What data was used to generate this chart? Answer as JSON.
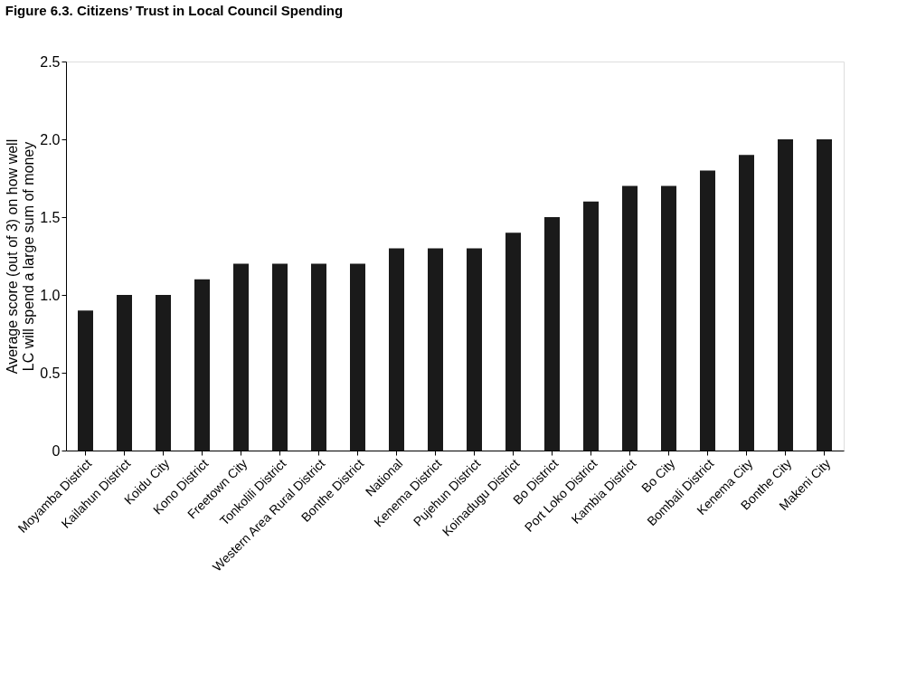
{
  "chart_data": {
    "type": "bar",
    "title": "Figure 6.3. Citizens’ Trust in Local Council Spending",
    "ylabel": "Average score (out of 3) on how well LC will spend a large sum of money",
    "categories": [
      "Moyamba District",
      "Kailahun District",
      "Koidu City",
      "Kono District",
      "Freetown City",
      "Tonkolili District",
      "Western Area Rural District",
      "Bonthe District",
      "National",
      "Kenema District",
      "Pujehun District",
      "Koinadugu District",
      "Bo District",
      "Port Loko District",
      "Kambia District",
      "Bo City",
      "Bombali District",
      "Kenema City",
      "Bonthe City",
      "Makeni City"
    ],
    "values": [
      0.9,
      1.0,
      1.0,
      1.1,
      1.2,
      1.2,
      1.2,
      1.2,
      1.3,
      1.3,
      1.3,
      1.4,
      1.5,
      1.6,
      1.7,
      1.7,
      1.8,
      1.9,
      2.0,
      2.0
    ],
    "color": "#1a1a1a",
    "ylim": [
      0,
      2.5
    ],
    "yticks": [
      0,
      {
        "value": 0.5,
        "label": "0.5"
      },
      {
        "value": 1,
        "label": "1.0"
      },
      {
        "value": 1.5,
        "label": "1.5"
      },
      {
        "value": 2,
        "label": "2.0"
      },
      {
        "value": 2.5,
        "label": "2.5"
      }
    ],
    "grid": false
  }
}
